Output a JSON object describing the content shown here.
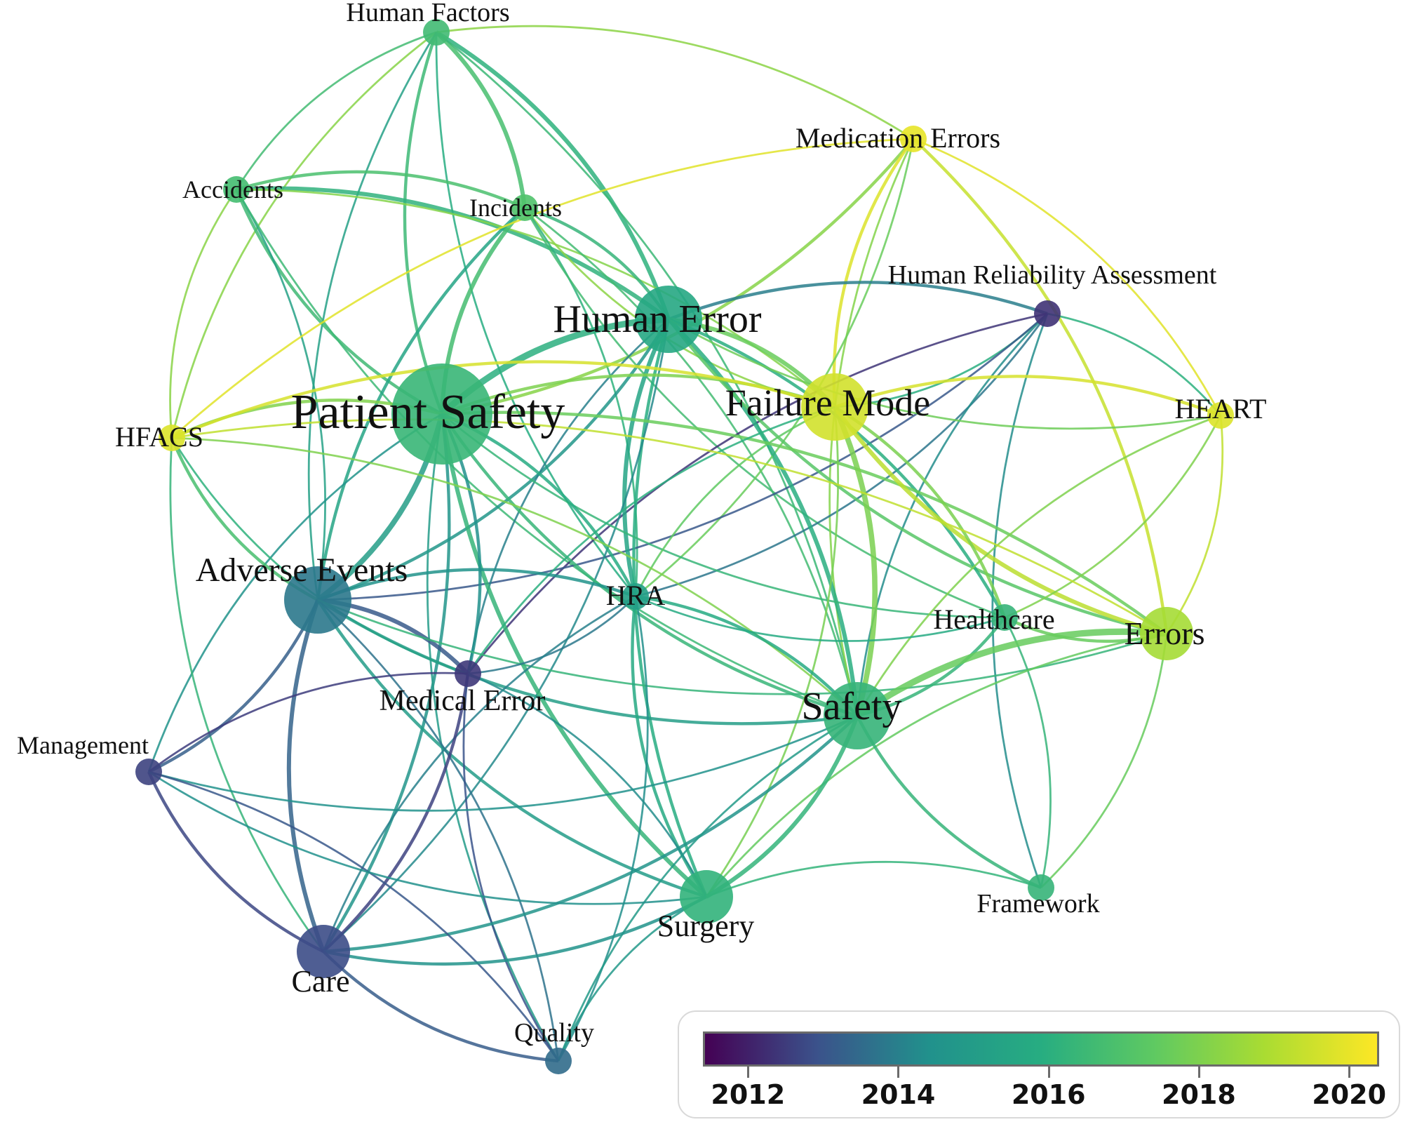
{
  "colors": {
    "year_scale": [
      "#440154",
      "#3b528b",
      "#21918c",
      "#27ad81",
      "#5ec962",
      "#aadc32",
      "#fde725"
    ],
    "year_min": 2011.4,
    "year_max": 2020.4
  },
  "nodes": [
    {
      "id": "human-factors",
      "label": "Human Factors",
      "year": 2016.6,
      "size": "small"
    },
    {
      "id": "accidents",
      "label": "Accidents",
      "year": 2016.7,
      "size": "small"
    },
    {
      "id": "incidents",
      "label": "Incidents",
      "year": 2017.0,
      "size": "small"
    },
    {
      "id": "medication-errors",
      "label": "Medication Errors",
      "year": 2020.0,
      "size": "small"
    },
    {
      "id": "human-reliability-assessment",
      "label": "Human Reliability Assessment",
      "year": 2012.3,
      "size": "small"
    },
    {
      "id": "human-error",
      "label": "Human Error",
      "year": 2015.6,
      "size": "large"
    },
    {
      "id": "patient-safety",
      "label": "Patient Safety",
      "year": 2016.4,
      "size": "huge"
    },
    {
      "id": "failure-mode",
      "label": "Failure Mode",
      "year": 2019.6,
      "size": "large"
    },
    {
      "id": "heart",
      "label": "HEART",
      "year": 2019.8,
      "size": "small"
    },
    {
      "id": "hfacs",
      "label": "HFACS",
      "year": 2019.8,
      "size": "small"
    },
    {
      "id": "adverse-events",
      "label": "Adverse Events",
      "year": 2013.8,
      "size": "large"
    },
    {
      "id": "hra",
      "label": "HRA",
      "year": 2015.2,
      "size": "small"
    },
    {
      "id": "healthcare",
      "label": "Healthcare",
      "year": 2016.3,
      "size": "small"
    },
    {
      "id": "errors",
      "label": "Errors",
      "year": 2018.8,
      "size": "medium"
    },
    {
      "id": "medical-error",
      "label": "Medical Error",
      "year": 2012.4,
      "size": "small"
    },
    {
      "id": "safety",
      "label": "Safety",
      "year": 2016.3,
      "size": "large"
    },
    {
      "id": "management",
      "label": "Management",
      "year": 2012.6,
      "size": "small"
    },
    {
      "id": "surgery",
      "label": "Surgery",
      "year": 2016.2,
      "size": "medium"
    },
    {
      "id": "framework",
      "label": "Framework",
      "year": 2016.3,
      "size": "small"
    },
    {
      "id": "care",
      "label": "Care",
      "year": 2012.8,
      "size": "medium"
    },
    {
      "id": "quality",
      "label": "Quality",
      "year": 2013.5,
      "size": "small"
    }
  ],
  "links": [
    [
      "human-factors",
      "accidents",
      1
    ],
    [
      "human-factors",
      "incidents",
      3
    ],
    [
      "human-factors",
      "patient-safety",
      2
    ],
    [
      "human-factors",
      "human-error",
      3
    ],
    [
      "human-factors",
      "hfacs",
      1
    ],
    [
      "human-factors",
      "medication-errors",
      1
    ],
    [
      "human-factors",
      "adverse-events",
      1
    ],
    [
      "human-factors",
      "safety",
      1
    ],
    [
      "human-factors",
      "hra",
      1
    ],
    [
      "accidents",
      "incidents",
      2
    ],
    [
      "accidents",
      "patient-safety",
      2
    ],
    [
      "accidents",
      "human-error",
      3
    ],
    [
      "accidents",
      "hfacs",
      1
    ],
    [
      "accidents",
      "adverse-events",
      1
    ],
    [
      "accidents",
      "safety",
      1
    ],
    [
      "accidents",
      "failure-mode",
      1
    ],
    [
      "incidents",
      "patient-safety",
      3
    ],
    [
      "incidents",
      "human-error",
      2
    ],
    [
      "incidents",
      "adverse-events",
      2
    ],
    [
      "incidents",
      "safety",
      1
    ],
    [
      "incidents",
      "failure-mode",
      1
    ],
    [
      "incidents",
      "hra",
      1
    ],
    [
      "incidents",
      "healthcare",
      1
    ],
    [
      "medication-errors",
      "patient-safety",
      2
    ],
    [
      "medication-errors",
      "failure-mode",
      2
    ],
    [
      "medication-errors",
      "errors",
      2
    ],
    [
      "medication-errors",
      "safety",
      1
    ],
    [
      "medication-errors",
      "heart",
      1
    ],
    [
      "medication-errors",
      "hfacs",
      1
    ],
    [
      "medication-errors",
      "hra",
      1
    ],
    [
      "human-reliability-assessment",
      "human-error",
      2
    ],
    [
      "human-reliability-assessment",
      "hra",
      1
    ],
    [
      "human-reliability-assessment",
      "safety",
      1
    ],
    [
      "human-reliability-assessment",
      "failure-mode",
      1
    ],
    [
      "human-reliability-assessment",
      "medical-error",
      1
    ],
    [
      "human-reliability-assessment",
      "heart",
      1
    ],
    [
      "human-reliability-assessment",
      "framework",
      1
    ],
    [
      "human-reliability-assessment",
      "adverse-events",
      1
    ],
    [
      "human-error",
      "patient-safety",
      5
    ],
    [
      "human-error",
      "failure-mode",
      3
    ],
    [
      "human-error",
      "hra",
      3
    ],
    [
      "human-error",
      "safety",
      3
    ],
    [
      "human-error",
      "errors",
      2
    ],
    [
      "human-error",
      "adverse-events",
      2
    ],
    [
      "human-error",
      "surgery",
      2
    ],
    [
      "human-error",
      "healthcare",
      2
    ],
    [
      "human-error",
      "heart",
      1
    ],
    [
      "human-error",
      "care",
      1
    ],
    [
      "human-error",
      "medical-error",
      1
    ],
    [
      "patient-safety",
      "adverse-events",
      4
    ],
    [
      "patient-safety",
      "hfacs",
      2
    ],
    [
      "patient-safety",
      "failure-mode",
      2
    ],
    [
      "patient-safety",
      "safety",
      2
    ],
    [
      "patient-safety",
      "errors",
      2
    ],
    [
      "patient-safety",
      "surgery",
      3
    ],
    [
      "patient-safety",
      "medical-error",
      2
    ],
    [
      "patient-safety",
      "healthcare",
      1
    ],
    [
      "patient-safety",
      "care",
      2
    ],
    [
      "patient-safety",
      "quality",
      1
    ],
    [
      "patient-safety",
      "hra",
      2
    ],
    [
      "patient-safety",
      "management",
      1
    ],
    [
      "failure-mode",
      "safety",
      4
    ],
    [
      "failure-mode",
      "errors",
      3
    ],
    [
      "failure-mode",
      "heart",
      2
    ],
    [
      "failure-mode",
      "hfacs",
      2
    ],
    [
      "failure-mode",
      "healthcare",
      2
    ],
    [
      "failure-mode",
      "hra",
      1
    ],
    [
      "failure-mode",
      "surgery",
      1
    ],
    [
      "failure-mode",
      "medical-error",
      1
    ],
    [
      "heart",
      "errors",
      1
    ],
    [
      "heart",
      "safety",
      1
    ],
    [
      "heart",
      "healthcare",
      1
    ],
    [
      "hfacs",
      "adverse-events",
      2
    ],
    [
      "hfacs",
      "safety",
      1
    ],
    [
      "hfacs",
      "care",
      1
    ],
    [
      "hfacs",
      "errors",
      1
    ],
    [
      "hfacs",
      "medical-error",
      1
    ],
    [
      "adverse-events",
      "medical-error",
      3
    ],
    [
      "adverse-events",
      "care",
      3
    ],
    [
      "adverse-events",
      "management",
      2
    ],
    [
      "adverse-events",
      "surgery",
      2
    ],
    [
      "adverse-events",
      "hra",
      2
    ],
    [
      "adverse-events",
      "safety",
      2
    ],
    [
      "adverse-events",
      "quality",
      1
    ],
    [
      "adverse-events",
      "errors",
      1
    ],
    [
      "hra",
      "safety",
      2
    ],
    [
      "hra",
      "surgery",
      2
    ],
    [
      "hra",
      "medical-error",
      1
    ],
    [
      "hra",
      "care",
      1
    ],
    [
      "hra",
      "quality",
      1
    ],
    [
      "hra",
      "healthcare",
      1
    ],
    [
      "healthcare",
      "safety",
      2
    ],
    [
      "healthcare",
      "errors",
      2
    ],
    [
      "healthcare",
      "framework",
      1
    ],
    [
      "errors",
      "safety",
      5
    ],
    [
      "errors",
      "framework",
      1
    ],
    [
      "errors",
      "surgery",
      1
    ],
    [
      "medical-error",
      "care",
      2
    ],
    [
      "medical-error",
      "management",
      1
    ],
    [
      "medical-error",
      "surgery",
      1
    ],
    [
      "medical-error",
      "quality",
      1
    ],
    [
      "safety",
      "surgery",
      3
    ],
    [
      "safety",
      "framework",
      2
    ],
    [
      "safety",
      "care",
      2
    ],
    [
      "safety",
      "quality",
      1
    ],
    [
      "safety",
      "management",
      1
    ],
    [
      "management",
      "care",
      2
    ],
    [
      "management",
      "quality",
      1
    ],
    [
      "management",
      "surgery",
      1
    ],
    [
      "surgery",
      "care",
      2
    ],
    [
      "surgery",
      "quality",
      1
    ],
    [
      "surgery",
      "framework",
      1
    ],
    [
      "care",
      "quality",
      2
    ]
  ],
  "legend": {
    "ticks": [
      {
        "label": "2012",
        "year": 2012
      },
      {
        "label": "2014",
        "year": 2014
      },
      {
        "label": "2016",
        "year": 2016
      },
      {
        "label": "2018",
        "year": 2018
      },
      {
        "label": "2020",
        "year": 2020
      }
    ]
  }
}
